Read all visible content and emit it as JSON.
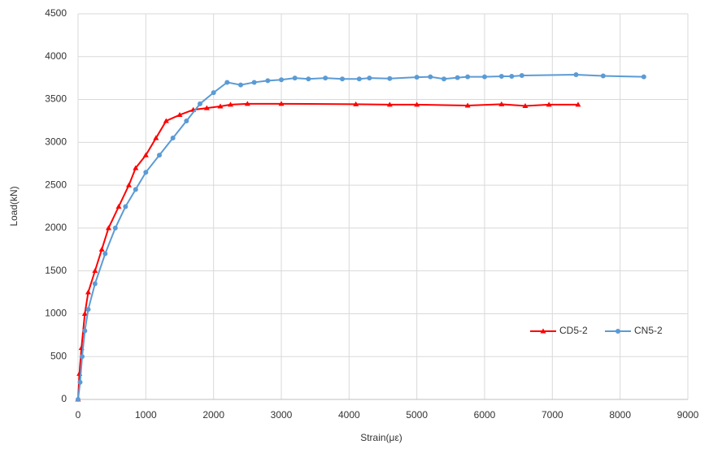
{
  "chart_data": {
    "type": "line",
    "xlabel": "Strain(με)",
    "ylabel": "Load(kN)",
    "xlim": [
      0,
      9000
    ],
    "xticks": [
      0,
      1000,
      2000,
      3000,
      4000,
      5000,
      6000,
      7000,
      8000,
      9000
    ],
    "ylim": [
      0,
      4500
    ],
    "yticks": [
      0,
      500,
      1000,
      1500,
      2000,
      2500,
      3000,
      3500,
      4000,
      4500
    ],
    "grid": true,
    "legend": "right",
    "series": [
      {
        "name": "CD5-2",
        "color": "#ff0000",
        "marker": "triangle",
        "x": [
          0,
          20,
          50,
          100,
          150,
          250,
          350,
          450,
          600,
          750,
          850,
          1000,
          1150,
          1300,
          1500,
          1700,
          1900,
          2100,
          2250,
          2500,
          3000,
          4100,
          4600,
          5000,
          5750,
          6250,
          6600,
          6950,
          7380
        ],
        "values": [
          0,
          300,
          600,
          1000,
          1250,
          1500,
          1750,
          2000,
          2250,
          2500,
          2700,
          2850,
          3050,
          3250,
          3320,
          3380,
          3400,
          3420,
          3440,
          3450,
          3450,
          3445,
          3440,
          3440,
          3430,
          3445,
          3425,
          3440,
          3440
        ]
      },
      {
        "name": "CN5-2",
        "color": "#5b9bd5",
        "marker": "circle",
        "x": [
          0,
          30,
          60,
          100,
          150,
          250,
          400,
          550,
          700,
          850,
          1000,
          1200,
          1400,
          1600,
          1800,
          2000,
          2200,
          2400,
          2600,
          2800,
          3000,
          3200,
          3400,
          3650,
          3900,
          4150,
          4300,
          4600,
          5000,
          5200,
          5400,
          5600,
          5750,
          6000,
          6250,
          6400,
          6550,
          7350,
          7750,
          8350
        ],
        "values": [
          0,
          200,
          500,
          800,
          1050,
          1350,
          1700,
          2000,
          2250,
          2450,
          2650,
          2850,
          3050,
          3250,
          3450,
          3580,
          3700,
          3670,
          3700,
          3720,
          3730,
          3750,
          3740,
          3750,
          3740,
          3740,
          3750,
          3745,
          3760,
          3765,
          3740,
          3755,
          3765,
          3765,
          3770,
          3770,
          3780,
          3790,
          3775,
          3765
        ]
      }
    ]
  }
}
